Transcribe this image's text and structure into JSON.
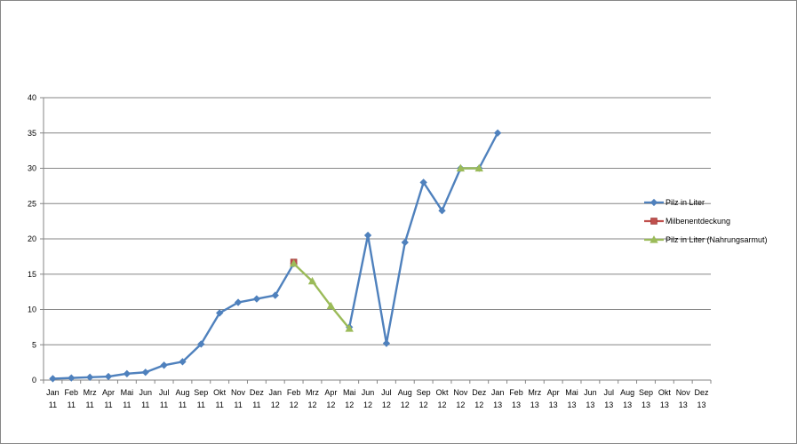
{
  "chart_data": {
    "type": "line",
    "title": "",
    "xlabel": "",
    "ylabel": "",
    "ylim": [
      0,
      40
    ],
    "yticks": [
      0,
      5,
      10,
      15,
      20,
      25,
      30,
      35,
      40
    ],
    "grid": true,
    "legend_position": "right",
    "categories": [
      [
        "Jan",
        "11"
      ],
      [
        "Feb",
        "11"
      ],
      [
        "Mrz",
        "11"
      ],
      [
        "Apr",
        "11"
      ],
      [
        "Mai",
        "11"
      ],
      [
        "Jun",
        "11"
      ],
      [
        "Jul",
        "11"
      ],
      [
        "Aug",
        "11"
      ],
      [
        "Sep",
        "11"
      ],
      [
        "Okt",
        "11"
      ],
      [
        "Nov",
        "11"
      ],
      [
        "Dez",
        "11"
      ],
      [
        "Jan",
        "12"
      ],
      [
        "Feb",
        "12"
      ],
      [
        "Mrz",
        "12"
      ],
      [
        "Apr",
        "12"
      ],
      [
        "Mai",
        "12"
      ],
      [
        "Jun",
        "12"
      ],
      [
        "Jul",
        "12"
      ],
      [
        "Aug",
        "12"
      ],
      [
        "Sep",
        "12"
      ],
      [
        "Okt",
        "12"
      ],
      [
        "Nov",
        "12"
      ],
      [
        "Dez",
        "12"
      ],
      [
        "Jan",
        "13"
      ],
      [
        "Feb",
        "13"
      ],
      [
        "Mrz",
        "13"
      ],
      [
        "Apr",
        "13"
      ],
      [
        "Mai",
        "13"
      ],
      [
        "Jun",
        "13"
      ],
      [
        "Jul",
        "13"
      ],
      [
        "Aug",
        "13"
      ],
      [
        "Sep",
        "13"
      ],
      [
        "Okt",
        "13"
      ],
      [
        "Nov",
        "13"
      ],
      [
        "Dez",
        "13"
      ]
    ],
    "series": [
      {
        "name": "Pilz in Liter",
        "color": "#4f81bd",
        "marker": "diamond",
        "values": [
          0.2,
          0.3,
          0.4,
          0.5,
          0.9,
          1.1,
          2.1,
          2.6,
          5.1,
          9.5,
          11.0,
          11.5,
          12.0,
          16.5,
          null,
          null,
          7.5,
          20.5,
          5.2,
          19.5,
          28.0,
          24.0,
          30.0,
          30.0,
          35.0,
          null,
          null,
          null,
          null,
          null,
          null,
          null,
          null,
          null,
          null,
          null
        ]
      },
      {
        "name": "Milbenentdeckung",
        "color": "#c0504d",
        "marker": "square",
        "values": [
          null,
          null,
          null,
          null,
          null,
          null,
          null,
          null,
          null,
          null,
          null,
          null,
          null,
          16.7,
          null,
          null,
          null,
          null,
          null,
          null,
          null,
          null,
          null,
          null,
          null,
          null,
          null,
          null,
          null,
          null,
          null,
          null,
          null,
          null,
          null,
          null
        ]
      },
      {
        "name": "Pilz in Liter (Nahrungsarmut)",
        "color": "#9bbb59",
        "marker": "triangle",
        "values": [
          null,
          null,
          null,
          null,
          null,
          null,
          null,
          null,
          null,
          null,
          null,
          null,
          null,
          16.5,
          14.0,
          10.5,
          7.3,
          null,
          null,
          null,
          null,
          null,
          30.0,
          30.0,
          null,
          null,
          null,
          null,
          null,
          null,
          null,
          null,
          null,
          null,
          null,
          null
        ]
      }
    ]
  }
}
